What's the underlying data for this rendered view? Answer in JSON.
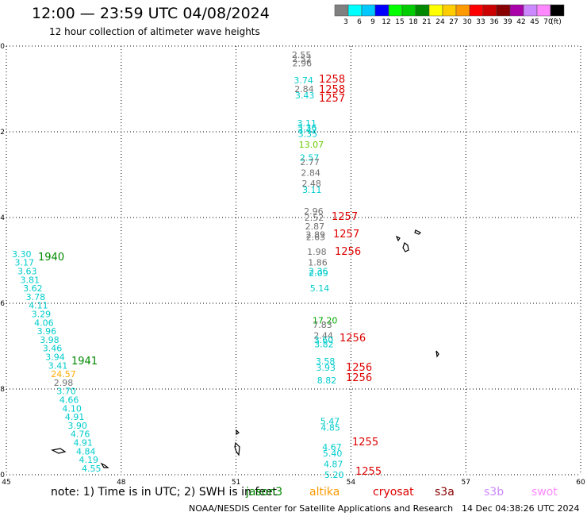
{
  "header": {
    "title": "12:00 — 23:59 UTC 04/08/2024",
    "subtitle": "12 hour collection of altimeter wave heights"
  },
  "legend": {
    "colors": [
      "#808080",
      "#00ffff",
      "#00c8ff",
      "#0000ff",
      "#00ff00",
      "#00cc00",
      "#008800",
      "#ffff00",
      "#ffcc00",
      "#ff9900",
      "#ff0000",
      "#cc0000",
      "#880000",
      "#aa00aa",
      "#cc88ff",
      "#ff88ff",
      "#000000"
    ],
    "labels": [
      "3",
      "6",
      "9",
      "12",
      "15",
      "18",
      "21",
      "24",
      "27",
      "30",
      "33",
      "36",
      "39",
      "42",
      "45",
      "70"
    ],
    "unit": "(ft)"
  },
  "axes": {
    "x_ticks": [
      45,
      48,
      51,
      54,
      57,
      60
    ],
    "y_ticks": [
      0,
      -2,
      -4,
      -6,
      -8,
      -10
    ],
    "x_range": [
      45,
      60
    ],
    "y_range": [
      -10,
      0
    ]
  },
  "observations": [
    {
      "lon": 42.6,
      "lat": -0.2,
      "text": "2.55",
      "color": "#707070"
    },
    {
      "lon": 42.6,
      "lat": -0.3,
      "text": "2.52",
      "color": "#707070"
    },
    {
      "lon": 42.6,
      "lat": -0.4,
      "text": "2.96",
      "color": "#707070"
    },
    {
      "lon": 42.6,
      "lat": -0.8,
      "text": "3.74",
      "color": "#00cccc"
    },
    {
      "lon": 42.6,
      "lat": -1.0,
      "text": "2.84",
      "color": "#707070"
    },
    {
      "lon": 42.6,
      "lat": -1.15,
      "text": "3.43",
      "color": "#00cccc"
    },
    {
      "lon": 42.6,
      "lat": -1.8,
      "text": "3.11",
      "color": "#00cccc"
    },
    {
      "lon": 42.6,
      "lat": -1.9,
      "text": "3.36",
      "color": "#00cccc"
    },
    {
      "lon": 42.6,
      "lat": -1.95,
      "text": "3.42",
      "color": "#00cccc"
    },
    {
      "lon": 42.6,
      "lat": -2.05,
      "text": "3.35",
      "color": "#00cccc"
    },
    {
      "lon": 42.6,
      "lat": -2.3,
      "text": "13.07",
      "color": "#66cc00"
    },
    {
      "lon": 42.6,
      "lat": -2.6,
      "text": "2.57",
      "color": "#00cccc"
    },
    {
      "lon": 42.6,
      "lat": -2.7,
      "text": "2.77",
      "color": "#707070"
    },
    {
      "lon": 42.6,
      "lat": -2.95,
      "text": "2.84",
      "color": "#707070"
    },
    {
      "lon": 42.6,
      "lat": -3.2,
      "text": "2.48",
      "color": "#707070"
    },
    {
      "lon": 42.6,
      "lat": -3.35,
      "text": "3.11",
      "color": "#00cccc"
    },
    {
      "lon": 42.6,
      "lat": -3.85,
      "text": "2.96",
      "color": "#707070"
    },
    {
      "lon": 42.6,
      "lat": -4.0,
      "text": "2.52",
      "color": "#707070"
    },
    {
      "lon": 42.6,
      "lat": -4.2,
      "text": "2.87",
      "color": "#707070"
    },
    {
      "lon": 42.6,
      "lat": -4.4,
      "text": "2.89",
      "color": "#707070"
    },
    {
      "lon": 42.6,
      "lat": -4.45,
      "text": "2.63",
      "color": "#707070"
    },
    {
      "lon": 42.6,
      "lat": -4.8,
      "text": "1.98",
      "color": "#707070"
    },
    {
      "lon": 42.6,
      "lat": -5.05,
      "text": "1.86",
      "color": "#707070"
    },
    {
      "lon": 42.6,
      "lat": -5.25,
      "text": "2.36",
      "color": "#00cccc"
    },
    {
      "lon": 42.6,
      "lat": -5.3,
      "text": "2.09",
      "color": "#00cccc"
    },
    {
      "lon": 42.6,
      "lat": -5.65,
      "text": "5.14",
      "color": "#00cccc"
    },
    {
      "lon": 42.6,
      "lat": -6.4,
      "text": "17.20",
      "color": "#00aa00"
    },
    {
      "lon": 42.6,
      "lat": -6.5,
      "text": "7.83",
      "color": "#707070"
    },
    {
      "lon": 42.6,
      "lat": -6.75,
      "text": "2.44",
      "color": "#707070"
    },
    {
      "lon": 42.6,
      "lat": -6.85,
      "text": "3.60",
      "color": "#00cccc"
    },
    {
      "lon": 42.6,
      "lat": -6.95,
      "text": "3.82",
      "color": "#00cccc"
    },
    {
      "lon": 42.6,
      "lat": -7.35,
      "text": "3.58",
      "color": "#00cccc"
    },
    {
      "lon": 42.6,
      "lat": -7.5,
      "text": "3.93",
      "color": "#00cccc"
    },
    {
      "lon": 42.6,
      "lat": -7.8,
      "text": "8.82",
      "color": "#00cccc"
    },
    {
      "lon": 42.6,
      "lat": -8.75,
      "text": "5.47",
      "color": "#00cccc"
    },
    {
      "lon": 42.6,
      "lat": -8.9,
      "text": "4.85",
      "color": "#00cccc"
    },
    {
      "lon": 42.6,
      "lat": -9.35,
      "text": "4.67",
      "color": "#00cccc"
    },
    {
      "lon": 42.6,
      "lat": -9.5,
      "text": "5.40",
      "color": "#00cccc"
    },
    {
      "lon": 42.6,
      "lat": -9.75,
      "text": "4.87",
      "color": "#00cccc"
    },
    {
      "lon": 42.6,
      "lat": -10.0,
      "text": "5.20",
      "color": "#00cccc"
    },
    {
      "lon": 38.6,
      "lat": -4.85,
      "text": "3.30",
      "color": "#00cccc"
    },
    {
      "lon": 38.6,
      "lat": -5.05,
      "text": "3.17",
      "color": "#00cccc"
    },
    {
      "lon": 38.6,
      "lat": -5.25,
      "text": "3.63",
      "color": "#00cccc"
    },
    {
      "lon": 38.6,
      "lat": -5.45,
      "text": "3.81",
      "color": "#00cccc"
    },
    {
      "lon": 38.6,
      "lat": -5.65,
      "text": "3.62",
      "color": "#00cccc"
    },
    {
      "lon": 38.6,
      "lat": -5.85,
      "text": "3.78",
      "color": "#00cccc"
    },
    {
      "lon": 38.6,
      "lat": -6.05,
      "text": "4.11",
      "color": "#00cccc"
    },
    {
      "lon": 38.6,
      "lat": -6.25,
      "text": "3.29",
      "color": "#00cccc"
    },
    {
      "lon": 38.6,
      "lat": -6.45,
      "text": "4.06",
      "color": "#00cccc"
    },
    {
      "lon": 38.6,
      "lat": -6.65,
      "text": "3.96",
      "color": "#00cccc"
    },
    {
      "lon": 38.6,
      "lat": -6.85,
      "text": "3.98",
      "color": "#00cccc"
    },
    {
      "lon": 38.6,
      "lat": -7.05,
      "text": "3.46",
      "color": "#00cccc"
    },
    {
      "lon": 38.6,
      "lat": -7.25,
      "text": "3.94",
      "color": "#00cccc"
    },
    {
      "lon": 38.6,
      "lat": -7.45,
      "text": "3.41",
      "color": "#00cccc"
    },
    {
      "lon": 38.6,
      "lat": -7.65,
      "text": "24.57",
      "color": "#ffaa00"
    },
    {
      "lon": 38.6,
      "lat": -7.85,
      "text": "2.98",
      "color": "#707070"
    },
    {
      "lon": 38.6,
      "lat": -8.05,
      "text": "3.70",
      "color": "#00cccc"
    },
    {
      "lon": 38.6,
      "lat": -8.25,
      "text": "4.66",
      "color": "#00cccc"
    },
    {
      "lon": 38.6,
      "lat": -8.45,
      "text": "4.10",
      "color": "#00cccc"
    },
    {
      "lon": 38.6,
      "lat": -8.65,
      "text": "4.91",
      "color": "#00cccc"
    },
    {
      "lon": 38.6,
      "lat": -8.85,
      "text": "3.90",
      "color": "#00cccc"
    },
    {
      "lon": 38.6,
      "lat": -9.05,
      "text": "4.76",
      "color": "#00cccc"
    },
    {
      "lon": 38.6,
      "lat": -9.25,
      "text": "4.91",
      "color": "#00cccc"
    },
    {
      "lon": 38.6,
      "lat": -9.45,
      "text": "4.84",
      "color": "#00cccc"
    },
    {
      "lon": 38.6,
      "lat": -9.65,
      "text": "4.19",
      "color": "#00cccc"
    },
    {
      "lon": 38.6,
      "lat": -9.85,
      "text": "4.55",
      "color": "#00cccc"
    }
  ],
  "pass_labels": [
    {
      "text": "1258",
      "color": "#dd0000",
      "ax": 402,
      "ay": 104
    },
    {
      "text": "1258",
      "color": "#dd0000",
      "ax": 402,
      "ay": 117
    },
    {
      "text": "1257",
      "color": "#dd0000",
      "ax": 402,
      "ay": 128
    },
    {
      "text": "1257",
      "color": "#dd0000",
      "ax": 418,
      "ay": 277
    },
    {
      "text": "1257",
      "color": "#dd0000",
      "ax": 420,
      "ay": 299
    },
    {
      "text": "1256",
      "color": "#dd0000",
      "ax": 422,
      "ay": 321
    },
    {
      "text": "1940",
      "color": "#008800",
      "ax": 48,
      "ay": 328
    },
    {
      "text": "1256",
      "color": "#dd0000",
      "ax": 428,
      "ay": 430
    },
    {
      "text": "1941",
      "color": "#008800",
      "ax": 90,
      "ay": 459
    },
    {
      "text": "1256",
      "color": "#dd0000",
      "ax": 436,
      "ay": 467
    },
    {
      "text": "1256",
      "color": "#dd0000",
      "ax": 436,
      "ay": 480
    },
    {
      "text": "1255",
      "color": "#dd0000",
      "ax": 444,
      "ay": 561
    },
    {
      "text": "1255",
      "color": "#dd0000",
      "ax": 448,
      "ay": 598
    }
  ],
  "note": "note: 1) Time is in UTC; 2) SWH is in feet",
  "satellites": [
    {
      "name": "jason3",
      "color": "#008800"
    },
    {
      "name": "altika",
      "color": "#ff9900"
    },
    {
      "name": "cryosat",
      "color": "#dd0000"
    },
    {
      "name": "s3a",
      "color": "#880000"
    },
    {
      "name": "s3b",
      "color": "#cc88ff"
    },
    {
      "name": "swot",
      "color": "#ff88ff"
    }
  ],
  "footer": {
    "org": "NOAA/NESDIS Center for Satellite Applications and Research",
    "stamp": "14 Dec 04:38:26 UTC 2024"
  }
}
